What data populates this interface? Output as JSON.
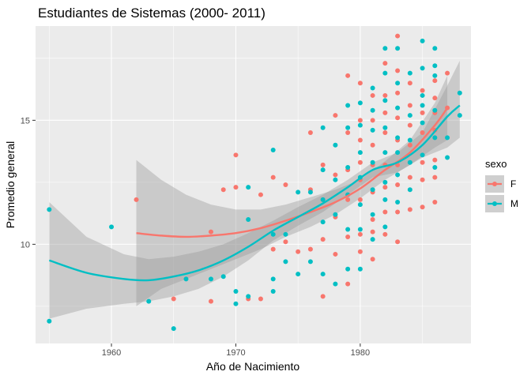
{
  "chart_data": {
    "type": "scatter",
    "title": "Estudiantes de Sistemas (2000- 2011)",
    "xlabel": "Año de Nacimiento",
    "ylabel": "Promedio general",
    "xlim": [
      1953.9,
      1988.9
    ],
    "ylim": [
      6.0,
      18.8
    ],
    "xticks": [
      1960,
      1970,
      1980
    ],
    "yticks": [
      10,
      15
    ],
    "grid": true,
    "legend": {
      "title": "sexo",
      "position": "right",
      "entries": [
        {
          "label": "F",
          "color": "#F8766D"
        },
        {
          "label": "M",
          "color": "#00BFC4"
        }
      ]
    },
    "series": [
      {
        "name": "F",
        "color": "#F8766D",
        "points": [
          [
            1962,
            11.8
          ],
          [
            1965,
            7.8
          ],
          [
            1968,
            10.5
          ],
          [
            1968,
            7.7
          ],
          [
            1969,
            12.2
          ],
          [
            1970,
            13.6
          ],
          [
            1970,
            12.3
          ],
          [
            1971,
            7.8
          ],
          [
            1972,
            7.8
          ],
          [
            1972,
            12.0
          ],
          [
            1973,
            12.7
          ],
          [
            1973,
            9.8
          ],
          [
            1974,
            10.1
          ],
          [
            1974,
            12.4
          ],
          [
            1975,
            9.7
          ],
          [
            1976,
            9.8
          ],
          [
            1976,
            12.2
          ],
          [
            1976,
            14.5
          ],
          [
            1977,
            13.2
          ],
          [
            1977,
            11.8
          ],
          [
            1977,
            7.9
          ],
          [
            1977,
            10.2
          ],
          [
            1978,
            15.2
          ],
          [
            1978,
            12.8
          ],
          [
            1978,
            11.1
          ],
          [
            1978,
            9.6
          ],
          [
            1979,
            16.8
          ],
          [
            1979,
            14.5
          ],
          [
            1979,
            13.0
          ],
          [
            1979,
            11.8
          ],
          [
            1979,
            10.3
          ],
          [
            1979,
            8.4
          ],
          [
            1980,
            16.5
          ],
          [
            1980,
            15.0
          ],
          [
            1980,
            14.2
          ],
          [
            1980,
            13.3
          ],
          [
            1980,
            12.6
          ],
          [
            1980,
            11.8
          ],
          [
            1980,
            10.4
          ],
          [
            1980,
            9.7
          ],
          [
            1981,
            16.0
          ],
          [
            1981,
            15.0
          ],
          [
            1981,
            14.0
          ],
          [
            1981,
            13.2
          ],
          [
            1981,
            12.1
          ],
          [
            1981,
            11.0
          ],
          [
            1981,
            10.5
          ],
          [
            1981,
            9.4
          ],
          [
            1982,
            17.3
          ],
          [
            1982,
            16.0
          ],
          [
            1982,
            15.3
          ],
          [
            1982,
            14.5
          ],
          [
            1982,
            13.2
          ],
          [
            1982,
            12.3
          ],
          [
            1982,
            11.3
          ],
          [
            1982,
            10.4
          ],
          [
            1983,
            18.4
          ],
          [
            1983,
            17.0
          ],
          [
            1983,
            16.1
          ],
          [
            1983,
            15.1
          ],
          [
            1983,
            14.2
          ],
          [
            1983,
            13.2
          ],
          [
            1983,
            12.4
          ],
          [
            1983,
            11.3
          ],
          [
            1983,
            10.1
          ],
          [
            1984,
            16.5
          ],
          [
            1984,
            15.6
          ],
          [
            1984,
            14.8
          ],
          [
            1984,
            14.0
          ],
          [
            1984,
            12.7
          ],
          [
            1984,
            11.4
          ],
          [
            1985,
            16.2
          ],
          [
            1985,
            15.3
          ],
          [
            1985,
            14.5
          ],
          [
            1985,
            13.3
          ],
          [
            1985,
            12.6
          ],
          [
            1985,
            11.5
          ],
          [
            1986,
            16.6
          ],
          [
            1986,
            15.9
          ],
          [
            1986,
            15.3
          ],
          [
            1986,
            14.6
          ],
          [
            1986,
            13.4
          ],
          [
            1986,
            12.7
          ],
          [
            1986,
            11.7
          ],
          [
            1987,
            16.9
          ],
          [
            1987,
            15.5
          ]
        ],
        "smooth": [
          [
            1962,
            10.45
          ],
          [
            1964,
            10.35
          ],
          [
            1966,
            10.3
          ],
          [
            1968,
            10.35
          ],
          [
            1970,
            10.45
          ],
          [
            1972,
            10.65
          ],
          [
            1974,
            10.95
          ],
          [
            1976,
            11.3
          ],
          [
            1978,
            11.7
          ],
          [
            1980,
            12.25
          ],
          [
            1982,
            13.0
          ],
          [
            1984,
            13.7
          ],
          [
            1986,
            14.8
          ],
          [
            1987,
            15.5
          ]
        ],
        "band": [
          [
            1962,
            13.4,
            7.5
          ],
          [
            1964,
            12.6,
            8.2
          ],
          [
            1966,
            12.0,
            8.6
          ],
          [
            1968,
            11.6,
            9.0
          ],
          [
            1970,
            11.4,
            9.4
          ],
          [
            1972,
            11.4,
            9.8
          ],
          [
            1974,
            11.6,
            10.3
          ],
          [
            1976,
            11.9,
            10.7
          ],
          [
            1978,
            12.2,
            11.2
          ],
          [
            1980,
            12.6,
            11.85
          ],
          [
            1982,
            13.35,
            12.6
          ],
          [
            1984,
            14.2,
            13.2
          ],
          [
            1986,
            15.7,
            13.9
          ],
          [
            1987,
            16.8,
            14.2
          ]
        ]
      },
      {
        "name": "M",
        "color": "#00BFC4",
        "points": [
          [
            1955,
            11.4
          ],
          [
            1955,
            6.9
          ],
          [
            1960,
            10.7
          ],
          [
            1963,
            7.7
          ],
          [
            1965,
            6.6
          ],
          [
            1966,
            8.6
          ],
          [
            1968,
            8.6
          ],
          [
            1969,
            8.7
          ],
          [
            1970,
            8.1
          ],
          [
            1970,
            7.6
          ],
          [
            1971,
            12.3
          ],
          [
            1971,
            11.0
          ],
          [
            1971,
            7.9
          ],
          [
            1973,
            13.8
          ],
          [
            1973,
            10.4
          ],
          [
            1973,
            8.6
          ],
          [
            1973,
            8.1
          ],
          [
            1974,
            10.4
          ],
          [
            1974,
            9.3
          ],
          [
            1975,
            12.1
          ],
          [
            1975,
            8.8
          ],
          [
            1976,
            12.1
          ],
          [
            1976,
            9.3
          ],
          [
            1977,
            14.7
          ],
          [
            1977,
            13.0
          ],
          [
            1977,
            11.8
          ],
          [
            1977,
            10.9
          ],
          [
            1977,
            8.8
          ],
          [
            1978,
            14.0
          ],
          [
            1978,
            12.6
          ],
          [
            1978,
            11.2
          ],
          [
            1978,
            8.4
          ],
          [
            1979,
            15.6
          ],
          [
            1979,
            14.7
          ],
          [
            1979,
            13.1
          ],
          [
            1979,
            12.0
          ],
          [
            1979,
            10.6
          ],
          [
            1979,
            9.0
          ],
          [
            1980,
            15.7
          ],
          [
            1980,
            14.8
          ],
          [
            1980,
            13.7
          ],
          [
            1980,
            12.7
          ],
          [
            1980,
            11.6
          ],
          [
            1980,
            10.6
          ],
          [
            1980,
            9.0
          ],
          [
            1981,
            16.3
          ],
          [
            1981,
            15.4
          ],
          [
            1981,
            14.6
          ],
          [
            1981,
            13.3
          ],
          [
            1981,
            12.2
          ],
          [
            1981,
            11.2
          ],
          [
            1981,
            10.2
          ],
          [
            1982,
            17.9
          ],
          [
            1982,
            16.9
          ],
          [
            1982,
            15.8
          ],
          [
            1982,
            14.7
          ],
          [
            1982,
            13.7
          ],
          [
            1982,
            12.5
          ],
          [
            1982,
            11.8
          ],
          [
            1982,
            10.7
          ],
          [
            1983,
            17.9
          ],
          [
            1983,
            16.5
          ],
          [
            1983,
            15.5
          ],
          [
            1983,
            14.3
          ],
          [
            1983,
            13.7
          ],
          [
            1983,
            12.8
          ],
          [
            1983,
            11.7
          ],
          [
            1984,
            16.9
          ],
          [
            1984,
            15.2
          ],
          [
            1984,
            14.2
          ],
          [
            1984,
            13.3
          ],
          [
            1984,
            12.2
          ],
          [
            1985,
            18.2
          ],
          [
            1985,
            17.1
          ],
          [
            1985,
            16.0
          ],
          [
            1985,
            15.6
          ],
          [
            1985,
            14.9
          ],
          [
            1985,
            13.6
          ],
          [
            1986,
            17.9
          ],
          [
            1986,
            17.2
          ],
          [
            1986,
            16.8
          ],
          [
            1986,
            15.4
          ],
          [
            1986,
            14.3
          ],
          [
            1986,
            13.1
          ],
          [
            1987,
            13.5
          ],
          [
            1987,
            14.3
          ],
          [
            1988,
            16.1
          ],
          [
            1988,
            15.2
          ]
        ],
        "smooth": [
          [
            1955,
            9.35
          ],
          [
            1958,
            8.85
          ],
          [
            1961,
            8.6
          ],
          [
            1963,
            8.55
          ],
          [
            1965,
            8.7
          ],
          [
            1967,
            8.95
          ],
          [
            1969,
            9.35
          ],
          [
            1971,
            9.9
          ],
          [
            1973,
            10.55
          ],
          [
            1975,
            11.1
          ],
          [
            1977,
            11.65
          ],
          [
            1979,
            12.3
          ],
          [
            1981,
            13.0
          ],
          [
            1983,
            13.3
          ],
          [
            1985,
            14.0
          ],
          [
            1987,
            15.15
          ],
          [
            1988,
            15.6
          ]
        ],
        "band": [
          [
            1955,
            11.7,
            7.0
          ],
          [
            1958,
            10.3,
            7.4
          ],
          [
            1961,
            9.6,
            7.6
          ],
          [
            1963,
            9.4,
            7.7
          ],
          [
            1965,
            9.5,
            7.9
          ],
          [
            1967,
            9.7,
            8.2
          ],
          [
            1969,
            10.0,
            8.7
          ],
          [
            1971,
            10.45,
            9.35
          ],
          [
            1973,
            10.95,
            10.15
          ],
          [
            1975,
            11.5,
            10.75
          ],
          [
            1977,
            12.0,
            11.3
          ],
          [
            1979,
            12.6,
            12.0
          ],
          [
            1981,
            13.3,
            12.7
          ],
          [
            1983,
            13.7,
            12.9
          ],
          [
            1985,
            14.5,
            13.5
          ],
          [
            1987,
            16.4,
            13.9
          ],
          [
            1988,
            17.4,
            14.3
          ]
        ]
      }
    ]
  }
}
